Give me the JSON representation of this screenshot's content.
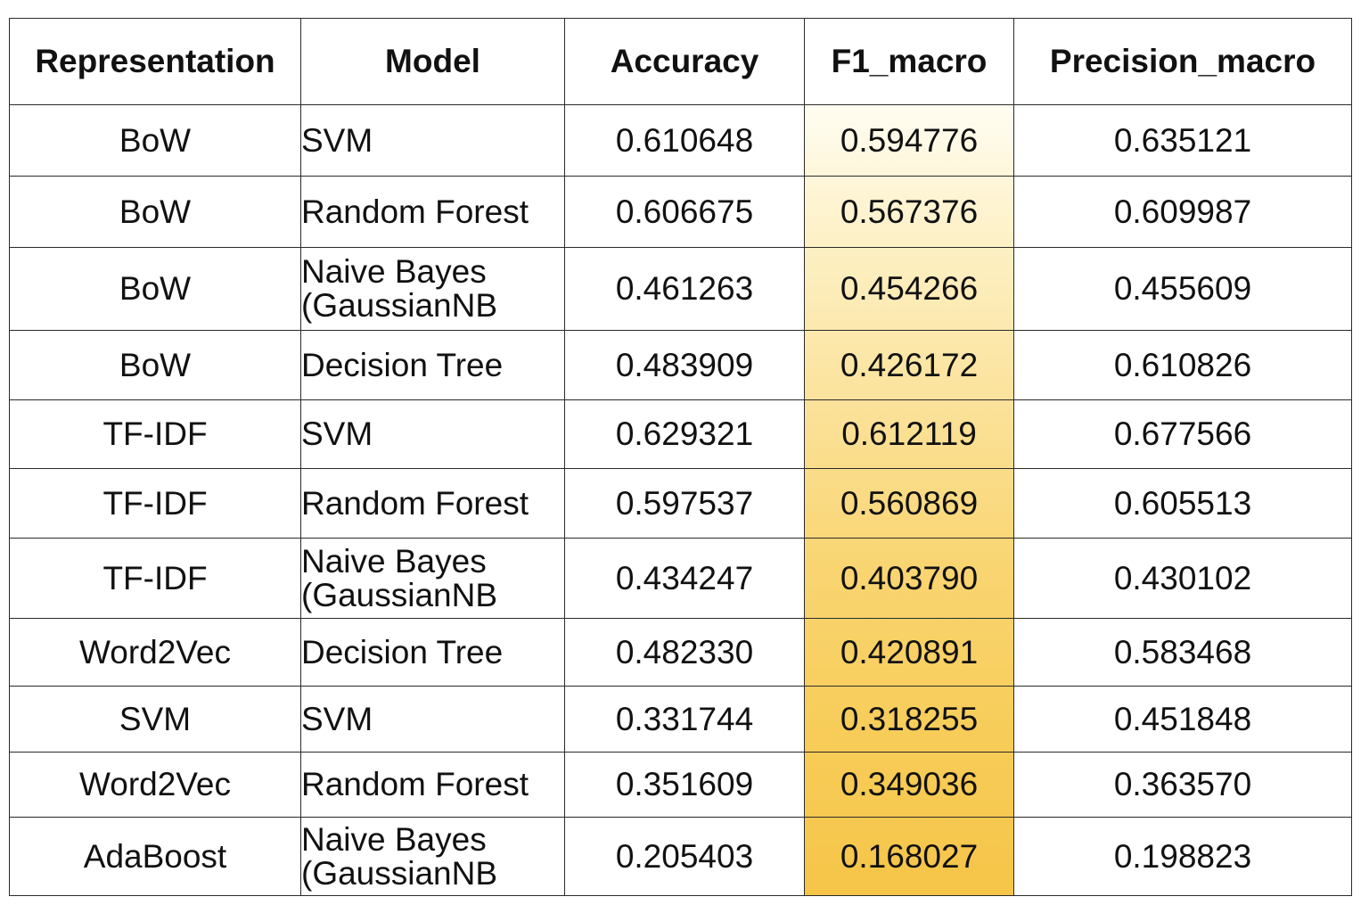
{
  "table": {
    "headers": [
      "Representation",
      "Model",
      "Accuracy",
      "F1_macro",
      "Precision_macro"
    ],
    "rows": [
      {
        "representation": "BoW",
        "model": "SVM",
        "accuracy": "0.610648",
        "f1_macro": "0.594776",
        "precision_macro": "0.635121"
      },
      {
        "representation": "BoW",
        "model": "Random Forest",
        "accuracy": "0.606675",
        "f1_macro": "0.567376",
        "precision_macro": "0.609987"
      },
      {
        "representation": "BoW",
        "model": "Naive Bayes\n(GaussianNB",
        "accuracy": "0.461263",
        "f1_macro": "0.454266",
        "precision_macro": "0.455609"
      },
      {
        "representation": "BoW",
        "model": "Decision Tree",
        "accuracy": "0.483909",
        "f1_macro": "0.426172",
        "precision_macro": "0.610826"
      },
      {
        "representation": "TF-IDF",
        "model": "SVM",
        "accuracy": "0.629321",
        "f1_macro": "0.612119",
        "precision_macro": "0.677566"
      },
      {
        "representation": "TF-IDF",
        "model": "Random Forest",
        "accuracy": "0.597537",
        "f1_macro": "0.560869",
        "precision_macro": "0.605513"
      },
      {
        "representation": "TF-IDF",
        "model": "Naive Bayes\n(GaussianNB",
        "accuracy": "0.434247",
        "f1_macro": "0.403790",
        "precision_macro": "0.430102"
      },
      {
        "representation": "Word2Vec",
        "model": "Decision Tree",
        "accuracy": "0.482330",
        "f1_macro": "0.420891",
        "precision_macro": "0.583468"
      },
      {
        "representation": "SVM",
        "model": "SVM",
        "accuracy": "0.331744",
        "f1_macro": "0.318255",
        "precision_macro": "0.451848"
      },
      {
        "representation": "Word2Vec",
        "model": "Random Forest",
        "accuracy": "0.351609",
        "f1_macro": "0.349036",
        "precision_macro": "0.363570"
      },
      {
        "representation": "AdaBoost",
        "model": "Naive Bayes\n(GaussianNB",
        "accuracy": "0.205403",
        "f1_macro": "0.168027",
        "precision_macro": "0.198823"
      }
    ]
  },
  "colors": {
    "highlight_top": "#fffdf2",
    "highlight_bottom": "#f6c548",
    "border": "#2a2a2a"
  }
}
